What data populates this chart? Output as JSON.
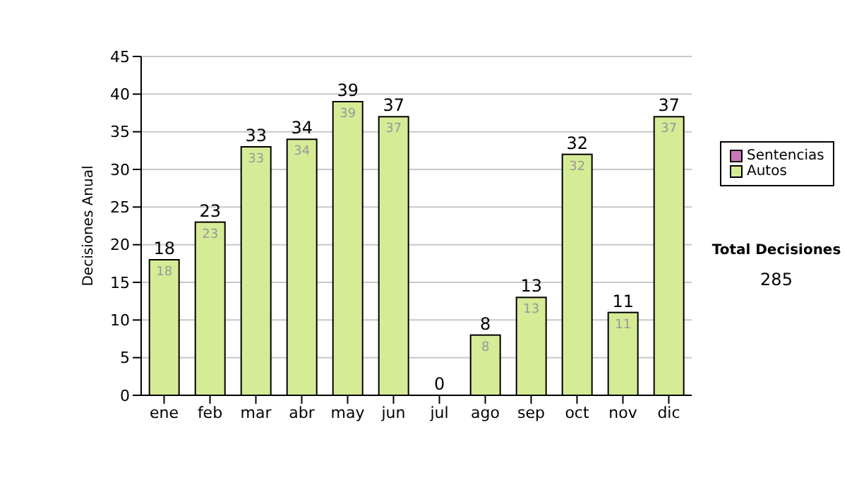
{
  "chart_data": {
    "type": "bar",
    "stacked": true,
    "ylabel": "Decisiones Anual",
    "categories": [
      "ene",
      "feb",
      "mar",
      "abr",
      "may",
      "jun",
      "jul",
      "ago",
      "sep",
      "oct",
      "nov",
      "dic"
    ],
    "series": [
      {
        "name": "Sentencias",
        "color": "#cc77bb",
        "values": [
          0,
          0,
          0,
          0,
          0,
          0,
          0,
          0,
          0,
          0,
          0,
          0
        ]
      },
      {
        "name": "Autos",
        "color": "#d6eb96",
        "values": [
          18,
          23,
          33,
          34,
          39,
          37,
          0,
          8,
          13,
          32,
          11,
          37
        ],
        "value_labels": [
          "18",
          "23",
          "33",
          "34",
          "39",
          "37",
          null,
          "8",
          "13",
          "32",
          "11",
          "37"
        ]
      }
    ],
    "totals": [
      "18",
      "23",
      "33",
      "34",
      "39",
      "37",
      "0",
      "8",
      "13",
      "32",
      "11",
      "37"
    ],
    "ylim": [
      0,
      45
    ],
    "yticks": [
      0,
      5,
      10,
      15,
      20,
      25,
      30,
      35,
      40,
      45
    ],
    "grid": "y",
    "legend": "right",
    "annotations": [
      "Total Decisiones",
      "285"
    ]
  }
}
